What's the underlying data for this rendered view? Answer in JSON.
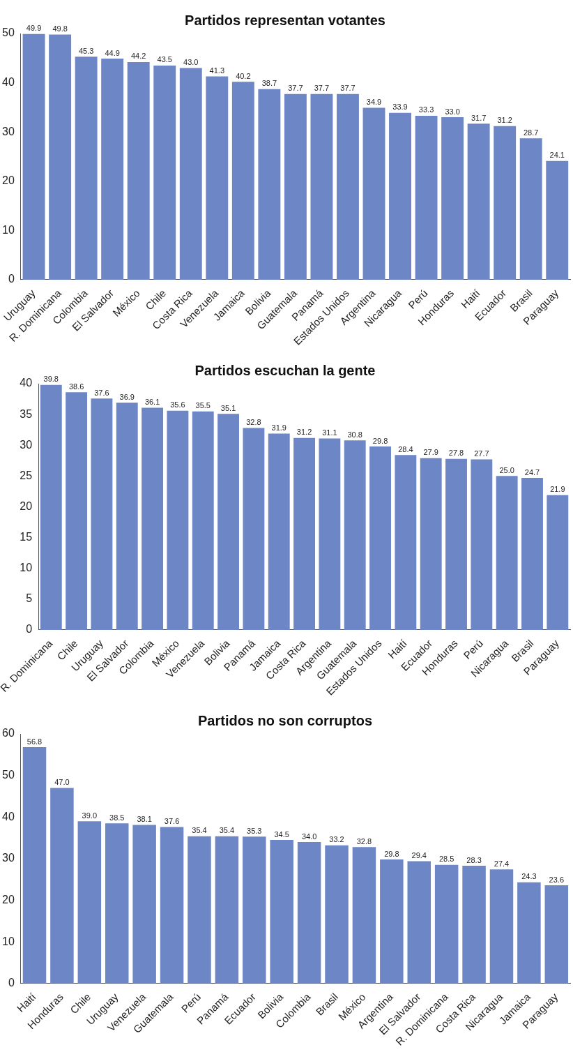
{
  "chart_data": [
    {
      "type": "bar",
      "title": "Partidos representan votantes",
      "categories": [
        "Uruguay",
        "R. Dominicana",
        "Colombia",
        "El Salvador",
        "México",
        "Chile",
        "Costa Rica",
        "Venezuela",
        "Jamaica",
        "Bolivia",
        "Guatemala",
        "Panamá",
        "Estados Unidos",
        "Argentina",
        "Nicaragua",
        "Perú",
        "Honduras",
        "Haití",
        "Ecuador",
        "Brasil",
        "Paraguay"
      ],
      "values": [
        49.9,
        49.8,
        45.3,
        44.9,
        44.2,
        43.5,
        43.0,
        41.3,
        40.2,
        38.7,
        37.7,
        37.7,
        37.7,
        34.9,
        33.9,
        33.3,
        33.0,
        31.7,
        31.2,
        28.7,
        24.1
      ],
      "value_labels": [
        "49.9",
        "49.8",
        "45.3",
        "44.9",
        "44.2",
        "43.5",
        "43.0",
        "41.3",
        "40.2",
        "38.7",
        "37.7",
        "37.7",
        "37.7",
        "34.9",
        "33.9",
        "33.3",
        "33.0",
        "31.7",
        "31.2",
        "28.7",
        "24.1"
      ],
      "color": "#6c86c6",
      "ylim": [
        0,
        50
      ],
      "yticks": [
        0,
        10,
        20,
        30,
        40,
        50
      ]
    },
    {
      "type": "bar",
      "title": "Partidos escuchan la gente",
      "categories": [
        "R. Dominicana",
        "Chile",
        "Uruguay",
        "El Salvador",
        "Colombia",
        "México",
        "Venezuela",
        "Bolivia",
        "Panamá",
        "Jamaica",
        "Costa Rica",
        "Argentina",
        "Guatemala",
        "Estados Unidos",
        "Haití",
        "Ecuador",
        "Honduras",
        "Perú",
        "Nicaragua",
        "Brasil",
        "Paraguay"
      ],
      "values": [
        39.8,
        38.6,
        37.6,
        36.9,
        36.1,
        35.6,
        35.5,
        35.1,
        32.8,
        31.9,
        31.2,
        31.1,
        30.8,
        29.8,
        28.4,
        27.9,
        27.8,
        27.7,
        25.0,
        24.7,
        21.9
      ],
      "value_labels": [
        "39.8",
        "38.6",
        "37.6",
        "36.9",
        "36.1",
        "35.6",
        "35.5",
        "35.1",
        "32.8",
        "31.9",
        "31.2",
        "31.1",
        "30.8",
        "29.8",
        "28.4",
        "27.9",
        "27.8",
        "27.7",
        "25.0",
        "24.7",
        "21.9"
      ],
      "color": "#6c86c6",
      "ylim": [
        0,
        40
      ],
      "yticks": [
        0,
        5,
        10,
        15,
        20,
        25,
        30,
        35,
        40
      ]
    },
    {
      "type": "bar",
      "title": "Partidos no son corruptos",
      "categories": [
        "Haití",
        "Honduras",
        "Chile",
        "Uruguay",
        "Venezuela",
        "Guatemala",
        "Perú",
        "Panamá",
        "Ecuador",
        "Bolivia",
        "Colombia",
        "Brasil",
        "México",
        "Argentina",
        "El Salvador",
        "R. Dominicana",
        "Costa Rica",
        "Nicaragua",
        "Jamaica",
        "Paraguay"
      ],
      "values": [
        56.8,
        47.0,
        39.0,
        38.5,
        38.1,
        37.6,
        35.4,
        35.4,
        35.3,
        34.5,
        34.0,
        33.2,
        32.8,
        29.8,
        29.4,
        28.5,
        28.3,
        27.4,
        24.3,
        23.6
      ],
      "value_labels": [
        "56.8",
        "47.0",
        "39.0",
        "38.5",
        "38.1",
        "37.6",
        "35.4",
        "35.4",
        "35.3",
        "34.5",
        "34.0",
        "33.2",
        "32.8",
        "29.8",
        "29.4",
        "28.5",
        "28.3",
        "27.4",
        "24.3",
        "23.6"
      ],
      "color": "#6c86c6",
      "ylim": [
        0,
        60
      ],
      "yticks": [
        0,
        10,
        20,
        30,
        40,
        50,
        60
      ]
    }
  ]
}
